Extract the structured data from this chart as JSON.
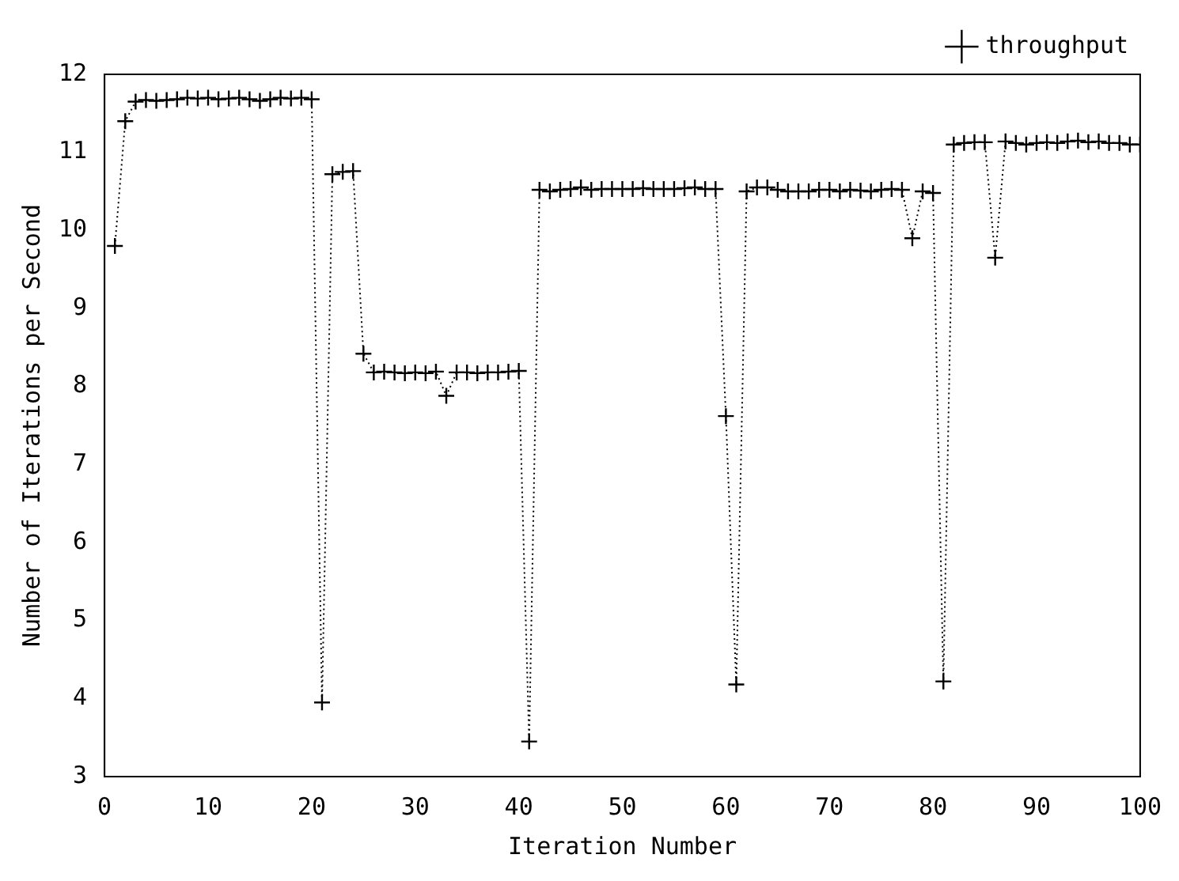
{
  "chart_data": {
    "type": "line",
    "xlabel": "Iteration Number",
    "ylabel": "Number of Iterations per Second",
    "x": [
      1,
      2,
      3,
      4,
      5,
      6,
      7,
      8,
      9,
      10,
      11,
      12,
      13,
      14,
      15,
      16,
      17,
      18,
      19,
      20,
      21,
      22,
      23,
      24,
      25,
      26,
      27,
      28,
      29,
      30,
      31,
      32,
      33,
      34,
      35,
      36,
      37,
      38,
      39,
      40,
      41,
      42,
      43,
      44,
      45,
      46,
      47,
      48,
      49,
      50,
      51,
      52,
      53,
      54,
      55,
      56,
      57,
      58,
      59,
      60,
      61,
      62,
      63,
      64,
      65,
      66,
      67,
      68,
      69,
      70,
      71,
      72,
      73,
      74,
      75,
      76,
      77,
      78,
      79,
      80,
      81,
      82,
      83,
      84,
      85,
      86,
      87,
      88,
      89,
      90,
      91,
      92,
      93,
      94,
      95,
      96,
      97,
      98,
      99,
      100
    ],
    "series": [
      {
        "name": "throughput",
        "color": "#000000",
        "values": [
          9.8,
          11.4,
          11.65,
          11.67,
          11.66,
          11.67,
          11.68,
          11.7,
          11.69,
          11.7,
          11.68,
          11.69,
          11.7,
          11.68,
          11.66,
          11.68,
          11.7,
          11.69,
          11.7,
          11.68,
          3.95,
          10.72,
          10.75,
          10.76,
          8.42,
          8.18,
          8.19,
          8.18,
          8.17,
          8.18,
          8.17,
          8.19,
          7.88,
          8.18,
          8.18,
          8.17,
          8.18,
          8.18,
          8.19,
          8.2,
          3.45,
          10.52,
          10.5,
          10.52,
          10.53,
          10.55,
          10.52,
          10.53,
          10.53,
          10.53,
          10.53,
          10.54,
          10.53,
          10.53,
          10.53,
          10.54,
          10.55,
          10.53,
          10.53,
          7.62,
          4.18,
          10.5,
          10.55,
          10.55,
          10.52,
          10.5,
          10.5,
          10.5,
          10.52,
          10.52,
          10.5,
          10.52,
          10.51,
          10.5,
          10.52,
          10.53,
          10.52,
          9.9,
          10.5,
          10.48,
          4.22,
          11.1,
          11.12,
          11.13,
          11.13,
          9.65,
          11.14,
          11.12,
          11.1,
          11.12,
          11.13,
          11.12,
          11.14,
          11.15,
          11.13,
          11.14,
          11.12,
          11.12,
          11.1,
          11.1
        ]
      }
    ],
    "xlim": [
      0,
      100
    ],
    "xticks": [
      0,
      10,
      20,
      30,
      40,
      50,
      60,
      70,
      80,
      90,
      100
    ],
    "ylim": [
      3,
      12
    ],
    "yticks": [
      3,
      4,
      5,
      6,
      7,
      8,
      9,
      10,
      11,
      12
    ],
    "grid": false,
    "legend": "top right",
    "marker": "cross",
    "line_style": "dotted"
  }
}
